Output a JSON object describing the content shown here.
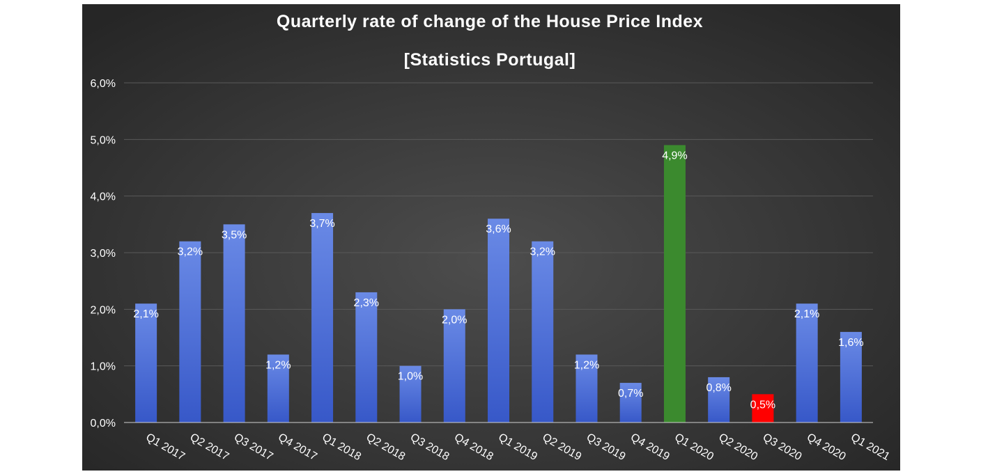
{
  "chart_data": {
    "type": "bar",
    "title": "Quarterly rate of change of the House Price Index",
    "subtitle": "[Statistics Portugal]",
    "xlabel": "",
    "ylabel": "",
    "categories": [
      "Q1 2017",
      "Q2 2017",
      "Q3 2017",
      "Q4 2017",
      "Q1 2018",
      "Q2 2018",
      "Q3 2018",
      "Q4 2018",
      "Q1 2019",
      "Q2 2019",
      "Q3 2019",
      "Q4 2019",
      "Q1 2020",
      "Q2 2020",
      "Q3 2020",
      "Q4 2020",
      "Q1 2021"
    ],
    "values": [
      2.1,
      3.2,
      3.5,
      1.2,
      3.7,
      2.3,
      1.0,
      2.0,
      3.6,
      3.2,
      1.2,
      0.7,
      4.9,
      0.8,
      0.5,
      2.1,
      1.6
    ],
    "data_labels": [
      "2,1%",
      "3,2%",
      "3,5%",
      "1,2%",
      "3,7%",
      "2,3%",
      "1,0%",
      "2,0%",
      "3,6%",
      "3,2%",
      "1,2%",
      "0,7%",
      "4,9%",
      "0,8%",
      "0,5%",
      "2,1%",
      "1,6%"
    ],
    "ylim": [
      0,
      6
    ],
    "y_ticks": [
      0,
      1,
      2,
      3,
      4,
      5,
      6
    ],
    "y_tick_labels": [
      "0,0%",
      "1,0%",
      "2,0%",
      "3,0%",
      "4,0%",
      "5,0%",
      "6,0%"
    ],
    "grid": true,
    "legend": "none",
    "colors": {
      "default_bar": "#4a6fd8",
      "highlight_max": "#3b8a2e",
      "highlight_min": "#ff0000",
      "background": "#333333",
      "text": "#ffffff",
      "gridline": "#5a5a5a"
    },
    "highlight": {
      "max_index": 12,
      "min_index": 14
    }
  }
}
